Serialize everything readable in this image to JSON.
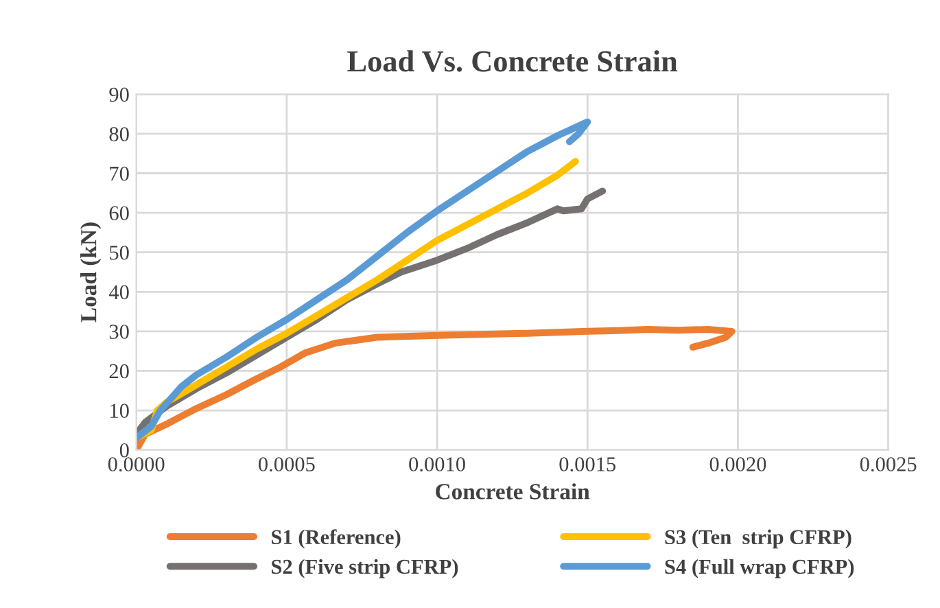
{
  "chart_data": {
    "type": "line",
    "title": "Load Vs. Concrete Strain",
    "xlabel": "Concrete Strain",
    "ylabel": "Load (kN)",
    "xlim": [
      0,
      0.0025
    ],
    "ylim": [
      0,
      90
    ],
    "xticks": [
      {
        "value": 0,
        "label": "0.0000"
      },
      {
        "value": 0.0005,
        "label": "0.0005"
      },
      {
        "value": 0.001,
        "label": "0.0010"
      },
      {
        "value": 0.0015,
        "label": "0.0015"
      },
      {
        "value": 0.002,
        "label": "0.0020"
      },
      {
        "value": 0.0025,
        "label": "0.0025"
      }
    ],
    "yticks": [
      0,
      10,
      20,
      30,
      40,
      50,
      60,
      70,
      80,
      90
    ],
    "grid": true,
    "legend": "bottom",
    "marker": "none",
    "line_style": "solid",
    "series": [
      {
        "name": "S1 (Reference)",
        "color": "#ed7d31",
        "x": [
          0,
          3e-05,
          0.0001,
          0.0002,
          0.0003,
          0.0004,
          0.00048,
          0.00056,
          0.00066,
          0.0008,
          0.001,
          0.0013,
          0.0015,
          0.0016,
          0.0017,
          0.0018,
          0.0019,
          0.00198,
          0.00196,
          0.0019,
          0.00185
        ],
        "values": [
          0,
          4,
          6.5,
          10.5,
          14,
          18,
          21,
          24.5,
          27,
          28.5,
          29,
          29.5,
          30,
          30.2,
          30.5,
          30.3,
          30.5,
          30,
          28.5,
          27,
          26
        ]
      },
      {
        "name": "S2 (Five strip CFRP)",
        "color": "#767171",
        "x": [
          0,
          3e-05,
          0.0001,
          0.0002,
          0.0003,
          0.0004,
          0.0005,
          0.0006,
          0.0007,
          0.0008,
          0.00088,
          0.001,
          0.0011,
          0.0012,
          0.0013,
          0.0014,
          0.00142,
          0.00148,
          0.0015,
          0.00155
        ],
        "values": [
          4,
          7,
          11,
          15.5,
          19.5,
          24,
          28.5,
          33,
          38,
          42,
          45,
          48,
          51,
          54.5,
          57.5,
          61,
          60.5,
          61,
          63.5,
          65.5
        ]
      },
      {
        "name": "S3 (Ten  strip CFRP)",
        "color": "#ffc000",
        "x": [
          0,
          5e-05,
          7e-05,
          0.0001,
          0.0002,
          0.0003,
          0.0004,
          0.0005,
          0.0006,
          0.0007,
          0.0008,
          0.0009,
          0.001,
          0.0011,
          0.0012,
          0.0013,
          0.0014,
          0.00146
        ],
        "values": [
          3,
          5,
          10,
          12,
          16.5,
          21,
          25.5,
          29.5,
          34,
          38.5,
          43,
          48,
          53,
          57,
          61,
          65,
          69.5,
          73
        ]
      },
      {
        "name": "S4 (Full wrap CFRP)",
        "color": "#5b9bd5",
        "x": [
          0,
          5e-05,
          8e-05,
          0.00015,
          0.0002,
          0.0003,
          0.0004,
          0.0005,
          0.0006,
          0.0007,
          0.0008,
          0.0009,
          0.001,
          0.0011,
          0.0012,
          0.0013,
          0.0014,
          0.0015,
          0.00147,
          0.00144
        ],
        "values": [
          3,
          6,
          10,
          16,
          19,
          23.5,
          28.5,
          33,
          38,
          43,
          49,
          55,
          60.5,
          65.5,
          70.5,
          75.5,
          79.5,
          83,
          80,
          78
        ]
      }
    ]
  }
}
